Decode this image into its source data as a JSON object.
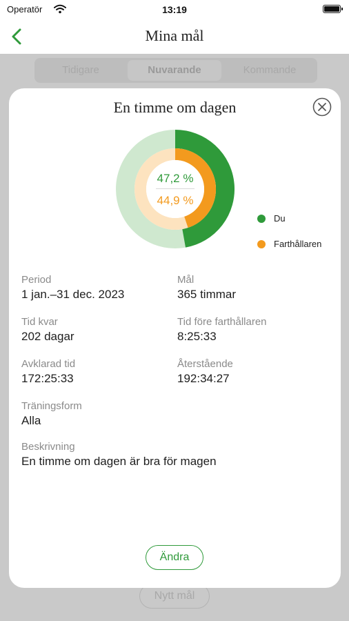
{
  "statusbar": {
    "carrier": "Operatör",
    "time": "13:19"
  },
  "nav": {
    "title": "Mina mål"
  },
  "segments": [
    "Tidigare",
    "Nuvarande",
    "Kommande"
  ],
  "background": {
    "new_goal_label": "Nytt mål"
  },
  "modal": {
    "title": "En timme om dagen",
    "you_percent_label": "47,2 %",
    "pacer_percent_label": "44,9 %",
    "legend": [
      {
        "label": "Du",
        "color": "#2f9a3a"
      },
      {
        "label": "Farthållaren",
        "color": "#f39a1e"
      }
    ],
    "fields": {
      "period": {
        "label": "Period",
        "value": "1 jan.–31 dec. 2023"
      },
      "goal": {
        "label": "Mål",
        "value": "365 timmar"
      },
      "time_left": {
        "label": "Tid kvar",
        "value": "202 dagar"
      },
      "ahead_of_pacer": {
        "label": "Tid före farthållaren",
        "value": "8:25:33"
      },
      "completed": {
        "label": "Avklarad tid",
        "value": "172:25:33"
      },
      "remaining": {
        "label": "Återstående",
        "value": "192:34:27"
      },
      "training_type": {
        "label": "Träningsform",
        "value": "Alla"
      },
      "description": {
        "label": "Beskrivning",
        "value": "En timme om dagen är bra för magen"
      }
    },
    "edit_label": "Ändra"
  },
  "chart_data": {
    "type": "pie",
    "series": [
      {
        "name": "Du",
        "value": 47.2,
        "color": "#2f9a3a",
        "track_color": "#cfe8cf"
      },
      {
        "name": "Farthållaren",
        "value": 44.9,
        "color": "#f39a1e",
        "track_color": "#fde3bf"
      }
    ]
  },
  "colors": {
    "accent": "#2f9a3a",
    "pacer": "#f39a1e"
  }
}
